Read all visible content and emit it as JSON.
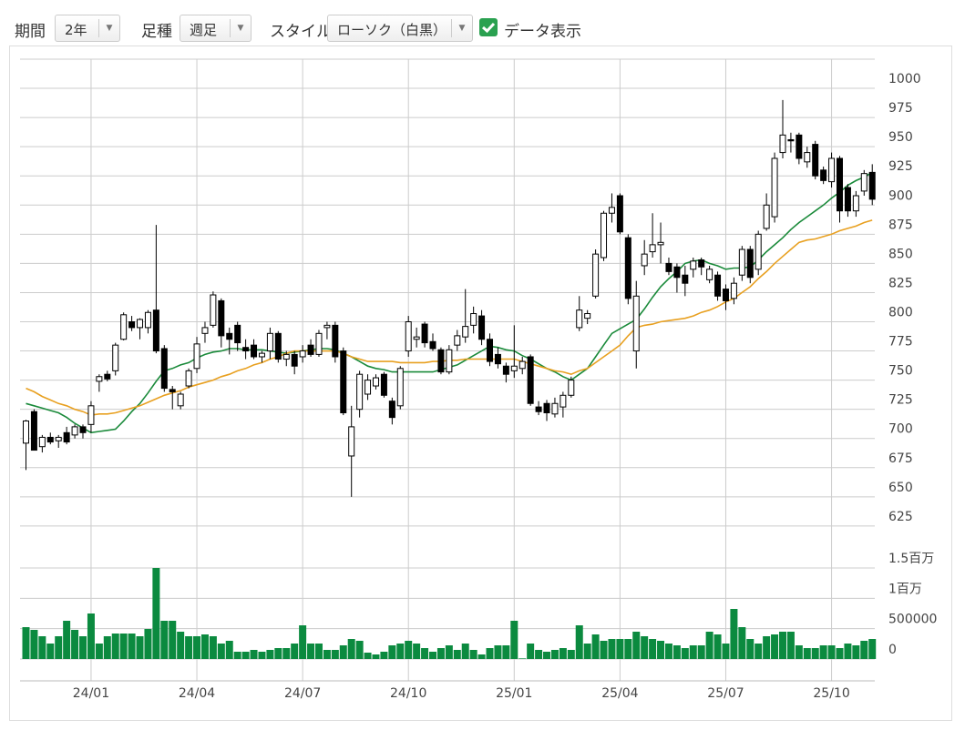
{
  "toolbar": {
    "period": {
      "label": "期間",
      "value": "2年"
    },
    "bar_type": {
      "label": "足種",
      "value": "週足"
    },
    "style": {
      "label": "スタイル",
      "value": "ローソク（白黒）"
    },
    "show_data": {
      "label": "データ表示",
      "checked": true
    }
  },
  "chart_data": {
    "type": "candlestick",
    "categories": [
      null,
      null,
      null,
      null,
      null,
      null,
      null,
      null,
      "24/01",
      null,
      null,
      null,
      null,
      null,
      null,
      null,
      null,
      null,
      null,
      null,
      null,
      "24/04",
      null,
      null,
      null,
      null,
      null,
      null,
      null,
      null,
      null,
      null,
      null,
      null,
      "24/07",
      null,
      null,
      null,
      null,
      null,
      null,
      null,
      null,
      null,
      null,
      null,
      null,
      "24/10",
      null,
      null,
      null,
      null,
      null,
      null,
      null,
      null,
      null,
      null,
      null,
      null,
      "25/01",
      null,
      null,
      null,
      null,
      null,
      null,
      null,
      null,
      null,
      null,
      null,
      null,
      "25/04",
      null,
      null,
      null,
      null,
      null,
      null,
      null,
      null,
      null,
      null,
      null,
      null,
      "25/07",
      null,
      null,
      null,
      null,
      null,
      null,
      null,
      null,
      null,
      null,
      null,
      null,
      "25/10",
      null,
      null,
      null,
      null,
      null
    ],
    "open": [
      696,
      723,
      693,
      701,
      698,
      705,
      703,
      710,
      712,
      749,
      755,
      758,
      785,
      800,
      795,
      795,
      810,
      777,
      742,
      728,
      745,
      760,
      790,
      797,
      818,
      790,
      797,
      778,
      780,
      770,
      775,
      790,
      768,
      772,
      770,
      780,
      772,
      795,
      797,
      775,
      685,
      725,
      738,
      745,
      755,
      732,
      728,
      775,
      785,
      798,
      783,
      776,
      757,
      780,
      787,
      797,
      805,
      785,
      772,
      762,
      758,
      760,
      770,
      727,
      730,
      721,
      727,
      737,
      795,
      803,
      822,
      855,
      893,
      908,
      872,
      775,
      848,
      860,
      866,
      850,
      847,
      840,
      845,
      853,
      836,
      840,
      828,
      820,
      840,
      862,
      845,
      880,
      890,
      945,
      956,
      960,
      937,
      952,
      930,
      920,
      940,
      915,
      895,
      912,
      928
    ],
    "high": [
      716,
      725,
      703,
      705,
      703,
      710,
      712,
      712,
      732,
      755,
      758,
      782,
      808,
      805,
      803,
      810,
      883,
      780,
      745,
      740,
      760,
      787,
      800,
      826,
      820,
      795,
      800,
      785,
      785,
      775,
      795,
      792,
      775,
      775,
      780,
      785,
      793,
      800,
      800,
      778,
      728,
      758,
      755,
      755,
      757,
      735,
      762,
      805,
      795,
      800,
      790,
      778,
      780,
      793,
      828,
      813,
      810,
      790,
      778,
      765,
      797,
      770,
      772,
      732,
      733,
      735,
      740,
      753,
      822,
      810,
      862,
      895,
      910,
      910,
      875,
      835,
      870,
      893,
      885,
      855,
      850,
      848,
      855,
      855,
      848,
      843,
      832,
      838,
      865,
      865,
      878,
      910,
      945,
      990,
      962,
      962,
      950,
      955,
      933,
      945,
      942,
      918,
      912,
      930,
      935
    ],
    "low": [
      673,
      690,
      688,
      695,
      692,
      695,
      700,
      700,
      705,
      740,
      749,
      754,
      784,
      792,
      785,
      790,
      773,
      740,
      725,
      725,
      743,
      756,
      782,
      795,
      778,
      772,
      775,
      768,
      768,
      765,
      768,
      765,
      762,
      755,
      765,
      770,
      770,
      785,
      765,
      720,
      650,
      718,
      733,
      742,
      735,
      712,
      725,
      770,
      778,
      778,
      775,
      755,
      755,
      775,
      782,
      790,
      780,
      762,
      760,
      748,
      752,
      755,
      728,
      720,
      715,
      718,
      718,
      735,
      792,
      798,
      820,
      852,
      885,
      875,
      815,
      760,
      840,
      855,
      850,
      840,
      825,
      822,
      838,
      840,
      833,
      818,
      810,
      815,
      835,
      833,
      840,
      878,
      885,
      940,
      945,
      935,
      932,
      922,
      918,
      915,
      885,
      890,
      890,
      908,
      900
    ],
    "close": [
      715,
      690,
      701,
      697,
      701,
      697,
      710,
      705,
      728,
      753,
      751,
      780,
      806,
      795,
      802,
      808,
      775,
      743,
      740,
      738,
      758,
      781,
      795,
      823,
      788,
      785,
      782,
      775,
      770,
      773,
      790,
      768,
      772,
      762,
      775,
      772,
      790,
      797,
      770,
      722,
      710,
      755,
      750,
      752,
      737,
      718,
      760,
      800,
      787,
      782,
      777,
      757,
      776,
      788,
      796,
      807,
      785,
      766,
      764,
      755,
      762,
      766,
      730,
      723,
      722,
      730,
      737,
      750,
      810,
      807,
      858,
      893,
      898,
      877,
      820,
      822,
      858,
      866,
      868,
      843,
      838,
      833,
      852,
      847,
      845,
      822,
      818,
      833,
      862,
      838,
      875,
      900,
      940,
      960,
      955,
      940,
      945,
      925,
      921,
      940,
      895,
      895,
      908,
      927,
      905
    ],
    "lines": [
      {
        "color": "#1a8a3a",
        "values": [
          730,
          728,
          726,
          724,
          722,
          718,
          713,
          709,
          705,
          706,
          707,
          708,
          715,
          723,
          730,
          739,
          749,
          758,
          760,
          763,
          765,
          769,
          772,
          774,
          775,
          777,
          777,
          776,
          776,
          776,
          775,
          774,
          773,
          774,
          775,
          776,
          777,
          777,
          776,
          773,
          770,
          766,
          762,
          760,
          759,
          757,
          757,
          757,
          757,
          757,
          757,
          759,
          761,
          763,
          767,
          771,
          775,
          779,
          778,
          776,
          775,
          771,
          768,
          764,
          760,
          757,
          753,
          750,
          755,
          760,
          770,
          780,
          790,
          794,
          798,
          802,
          811,
          821,
          830,
          837,
          843,
          850,
          852,
          853,
          850,
          848,
          845,
          846,
          846,
          847,
          853,
          860,
          866,
          872,
          879,
          885,
          890,
          895,
          900,
          906,
          911,
          917,
          921,
          924,
          928
        ]
      },
      {
        "color": "#e8a020",
        "values": [
          743,
          740,
          736,
          733,
          730,
          728,
          725,
          723,
          720,
          721,
          721,
          722,
          724,
          726,
          728,
          731,
          734,
          737,
          739,
          741,
          744,
          746,
          748,
          750,
          753,
          755,
          758,
          760,
          763,
          765,
          768,
          770,
          773,
          775,
          775,
          775,
          775,
          775,
          775,
          773,
          770,
          768,
          766,
          766,
          766,
          766,
          765,
          765,
          765,
          765,
          766,
          766,
          767,
          767,
          768,
          768,
          768,
          768,
          768,
          768,
          768,
          766,
          764,
          762,
          760,
          758,
          757,
          755,
          758,
          760,
          765,
          770,
          775,
          780,
          788,
          795,
          797,
          798,
          800,
          801,
          802,
          803,
          805,
          808,
          810,
          813,
          817,
          820,
          825,
          830,
          837,
          843,
          850,
          856,
          862,
          868,
          870,
          871,
          873,
          875,
          878,
          880,
          882,
          885,
          887
        ]
      }
    ],
    "ylim": [
      614,
      1025
    ],
    "yticks": [
      625,
      650,
      675,
      700,
      725,
      750,
      775,
      800,
      825,
      850,
      875,
      900,
      925,
      950,
      975,
      1000
    ],
    "grid": true,
    "volume": {
      "color": "#0b8a3f",
      "values": [
        525000,
        480000,
        375000,
        255000,
        375000,
        630000,
        480000,
        375000,
        750000,
        255000,
        375000,
        420000,
        420000,
        420000,
        375000,
        495000,
        1500000,
        630000,
        630000,
        450000,
        375000,
        375000,
        405000,
        375000,
        255000,
        300000,
        120000,
        120000,
        150000,
        120000,
        150000,
        180000,
        180000,
        255000,
        555000,
        255000,
        255000,
        150000,
        150000,
        225000,
        330000,
        300000,
        105000,
        75000,
        120000,
        225000,
        255000,
        300000,
        255000,
        180000,
        120000,
        180000,
        225000,
        150000,
        255000,
        150000,
        75000,
        180000,
        225000,
        225000,
        630000,
        10000,
        255000,
        150000,
        120000,
        150000,
        180000,
        150000,
        555000,
        255000,
        405000,
        300000,
        330000,
        330000,
        330000,
        450000,
        375000,
        330000,
        300000,
        255000,
        225000,
        180000,
        225000,
        225000,
        450000,
        405000,
        255000,
        825000,
        525000,
        330000,
        255000,
        375000,
        405000,
        450000,
        450000,
        225000,
        180000,
        180000,
        225000,
        225000,
        180000,
        255000,
        225000,
        300000,
        330000
      ],
      "ylim": [
        0,
        1500000
      ],
      "yticks": [
        0,
        500000,
        {
          "value": 1000000,
          "label": "1百万"
        },
        {
          "value": 1500000,
          "label": "1.5百万"
        }
      ]
    }
  }
}
